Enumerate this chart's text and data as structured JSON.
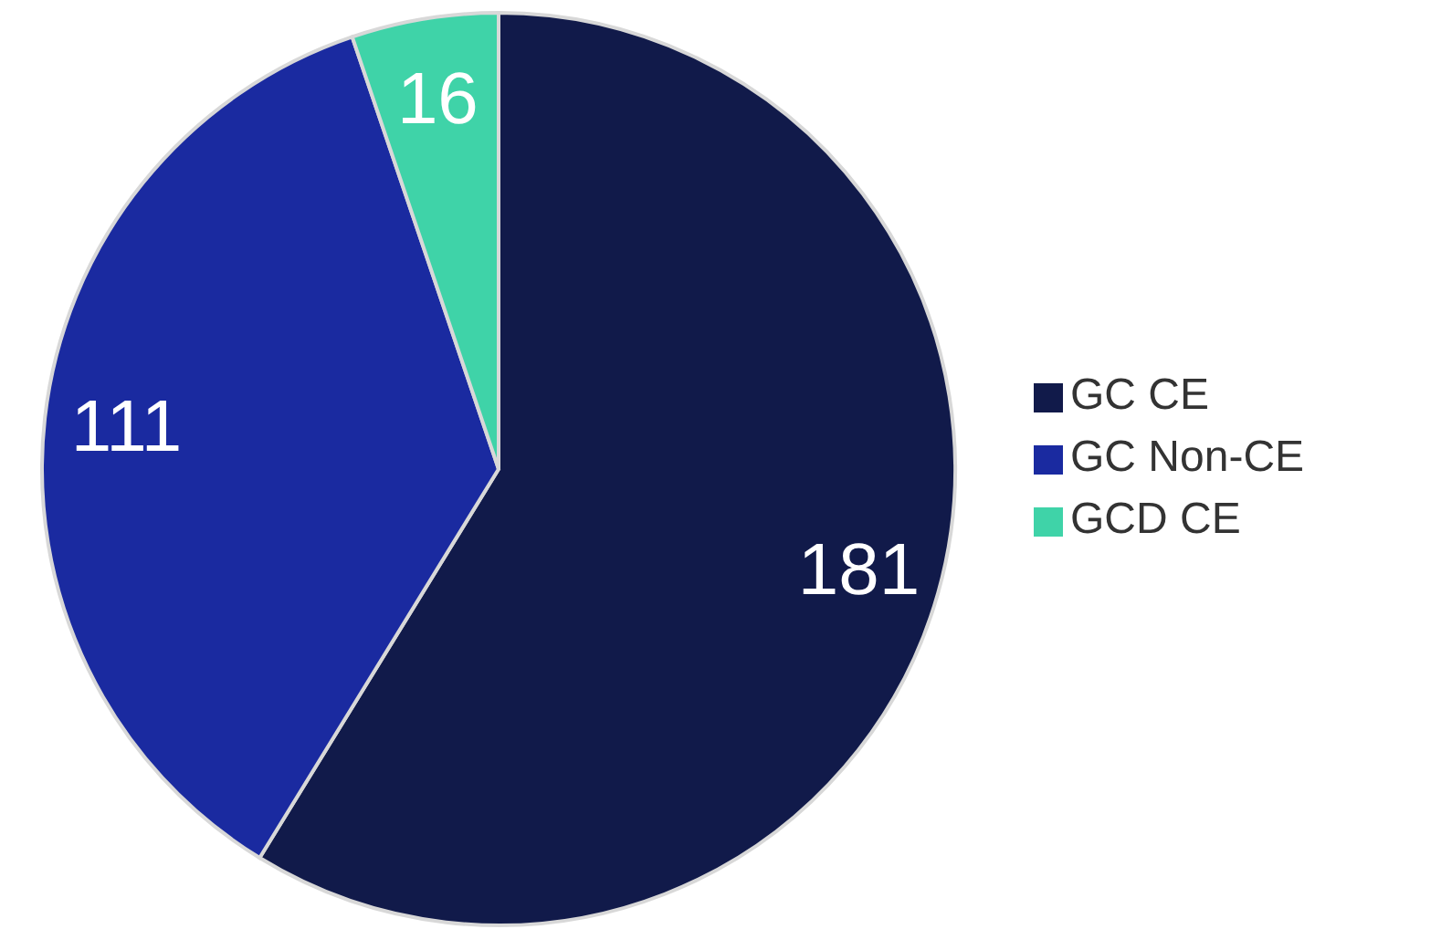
{
  "chart_data": {
    "type": "pie",
    "categories": [
      "GC CE",
      "GC Non-CE",
      "GCD CE"
    ],
    "values": [
      181,
      111,
      16
    ],
    "colors": [
      "#111a4a",
      "#1a2aa0",
      "#3fd3a8"
    ],
    "data_labels": true,
    "legend": "right"
  }
}
